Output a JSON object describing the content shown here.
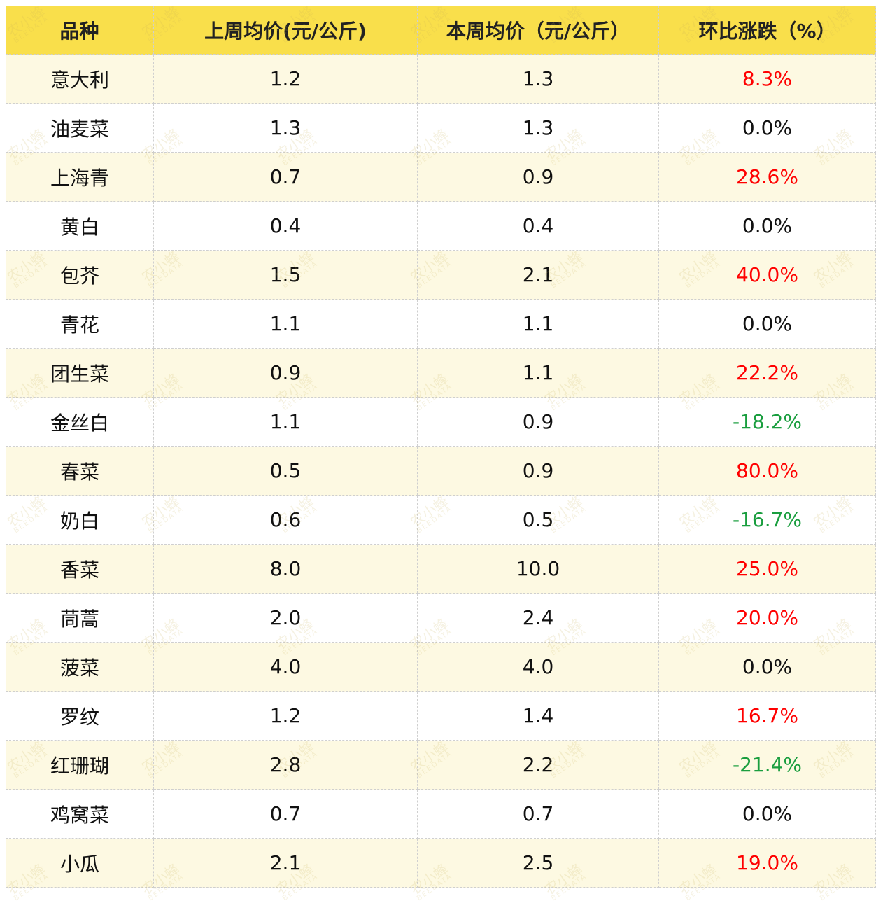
{
  "table": {
    "header": [
      "品种",
      "上周均价(元/公斤)",
      "本周均价（元/公斤）",
      "环比涨跌（%）"
    ],
    "rows": [
      [
        "意大利",
        "1.2",
        "1.3",
        "8.3%"
      ],
      [
        "油麦菜",
        "1.3",
        "1.3",
        "0.0%"
      ],
      [
        "上海青",
        "0.7",
        "0.9",
        "28.6%"
      ],
      [
        "黄白",
        "0.4",
        "0.4",
        "0.0%"
      ],
      [
        "包芥",
        "1.5",
        "2.1",
        "40.0%"
      ],
      [
        "青花",
        "1.1",
        "1.1",
        "0.0%"
      ],
      [
        "团生菜",
        "0.9",
        "1.1",
        "22.2%"
      ],
      [
        "金丝白",
        "1.1",
        "0.9",
        "-18.2%"
      ],
      [
        "春菜",
        "0.5",
        "0.9",
        "80.0%"
      ],
      [
        "奶白",
        "0.6",
        "0.5",
        "-16.7%"
      ],
      [
        "香菜",
        "8.0",
        "10.0",
        "25.0%"
      ],
      [
        "茼蒿",
        "2.0",
        "2.4",
        "20.0%"
      ],
      [
        "菠菜",
        "4.0",
        "4.0",
        "0.0%"
      ],
      [
        "罗纹",
        "1.2",
        "1.4",
        "16.7%"
      ],
      [
        "红珊瑚",
        "2.8",
        "2.2",
        "-21.4%"
      ],
      [
        "鸡窝菜",
        "0.7",
        "0.7",
        "0.0%"
      ],
      [
        "小瓜",
        "2.1",
        "2.5",
        "19.0%"
      ]
    ],
    "change_colors": [
      "#ff0000",
      "#111111",
      "#ff0000",
      "#111111",
      "#ff0000",
      "#111111",
      "#ff0000",
      "#1a9e3f",
      "#ff0000",
      "#1a9e3f",
      "#ff0000",
      "#ff0000",
      "#111111",
      "#ff0000",
      "#1a9e3f",
      "#111111",
      "#ff0000"
    ]
  },
  "watermark": [
    "农小蜂",
    "BEEDATA"
  ]
}
